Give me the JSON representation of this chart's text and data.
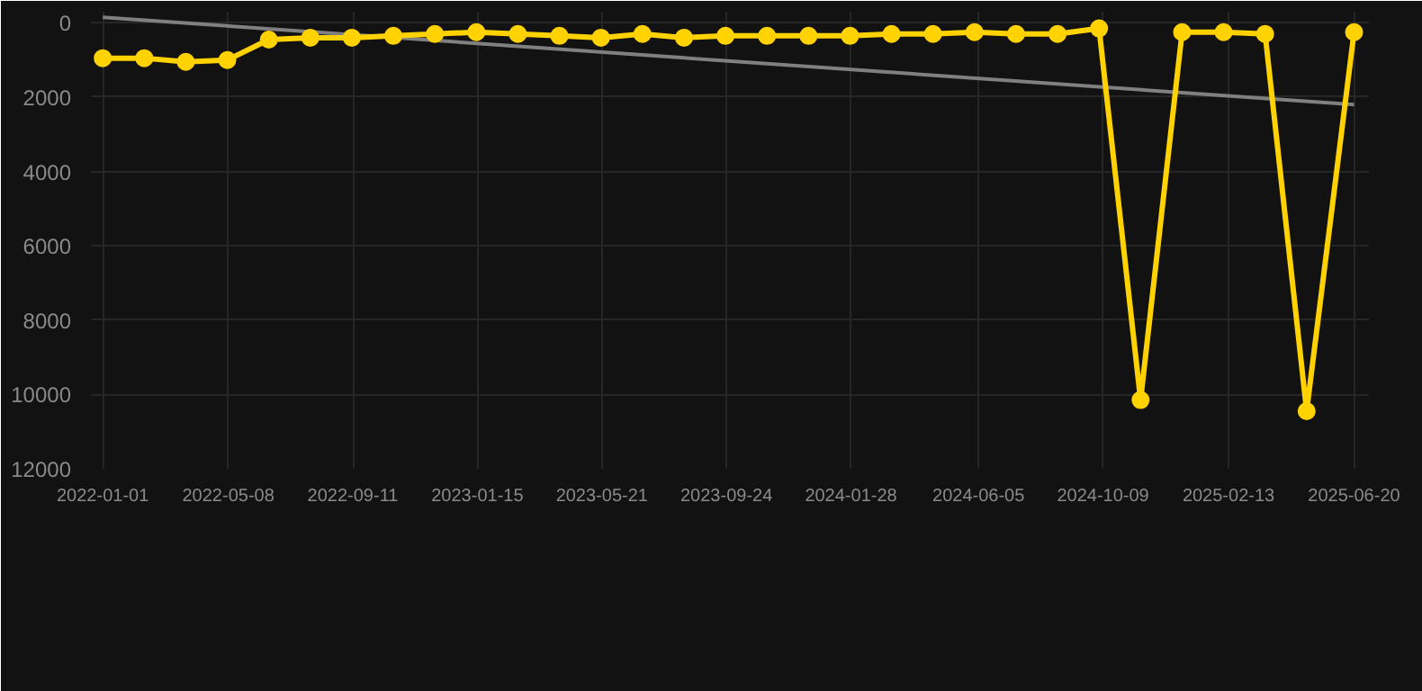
{
  "chart_data": {
    "type": "line",
    "x": [
      "2022-01-01",
      "2022-02-12",
      "2022-03-26",
      "2022-05-07",
      "2022-06-18",
      "2022-07-30",
      "2022-09-10",
      "2022-10-22",
      "2022-12-03",
      "2023-01-14",
      "2023-02-25",
      "2023-04-08",
      "2023-05-20",
      "2023-07-01",
      "2023-08-12",
      "2023-09-23",
      "2023-11-04",
      "2023-12-16",
      "2024-01-27",
      "2024-03-09",
      "2024-04-20",
      "2024-06-01",
      "2024-07-13",
      "2024-08-24",
      "2024-10-05",
      "2024-11-16",
      "2024-12-28",
      "2025-02-08",
      "2025-03-22",
      "2025-05-03",
      "2025-06-20"
    ],
    "series": [
      {
        "color": "#ffd200",
        "marker": "circle",
        "values": [
          950,
          950,
          1050,
          1000,
          450,
          400,
          400,
          350,
          300,
          250,
          300,
          350,
          400,
          300,
          400,
          350,
          350,
          350,
          350,
          300,
          300,
          250,
          300,
          300,
          150,
          10150,
          250,
          250,
          300,
          10450,
          250
        ]
      },
      {
        "type": "line",
        "color": "#808080",
        "marker": "none",
        "x": [
          "2022-01-01",
          "2025-06-20"
        ],
        "values": [
          -150,
          2200
        ]
      }
    ],
    "ylim": [
      12000,
      -300
    ],
    "yticks": [
      0,
      2000,
      4000,
      6000,
      8000,
      10000,
      12000
    ],
    "xlim": [
      "2021-12-20",
      "2025-07-05"
    ],
    "xticks": [
      "2022-01-01",
      "2022-05-08",
      "2022-09-11",
      "2023-01-15",
      "2023-05-21",
      "2023-09-24",
      "2024-01-28",
      "2024-06-05",
      "2024-10-09",
      "2025-02-13",
      "2025-06-20"
    ],
    "grid": true,
    "line_style": "solid"
  }
}
